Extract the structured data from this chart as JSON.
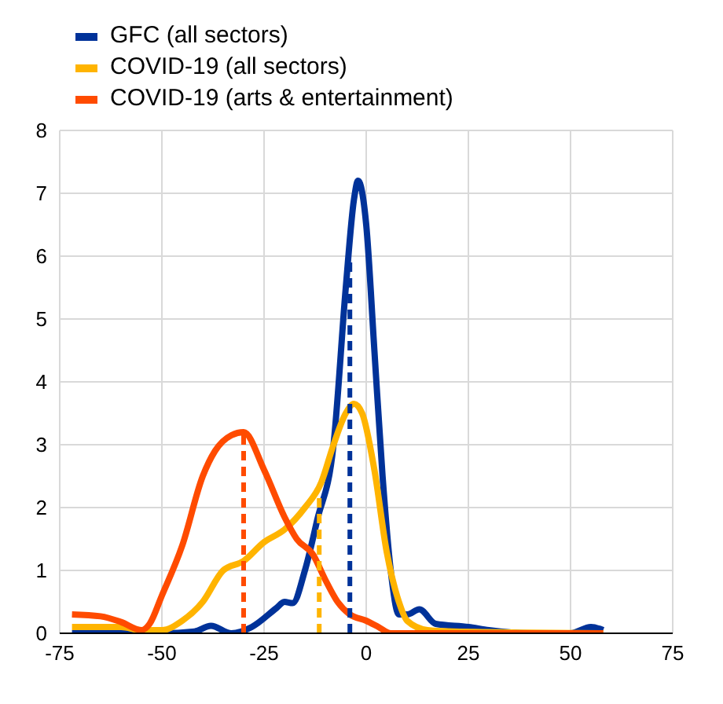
{
  "chart_data": {
    "type": "line",
    "xlim": [
      -75,
      75
    ],
    "xticks": [
      -75,
      -50,
      -25,
      0,
      25,
      50,
      75
    ],
    "ylim": [
      0,
      8
    ],
    "yticks": [
      0,
      1,
      2,
      3,
      4,
      5,
      6,
      7,
      8
    ],
    "grid": true,
    "legend": "top left",
    "marker": "none",
    "line_style": "solid",
    "series": [
      {
        "name": "GFC (all sectors)",
        "color": "#003299",
        "x": [
          -72,
          -50,
          -42,
          -38,
          -33,
          -28,
          -22,
          -20,
          -18,
          -15,
          -12,
          -8,
          -5,
          -3,
          -2,
          0,
          2,
          4,
          6,
          8,
          10,
          13,
          17,
          25,
          30,
          40,
          50,
          55,
          58
        ],
        "values": [
          0,
          0,
          0.03,
          0.12,
          0,
          0.1,
          0.4,
          0.5,
          0.48,
          1.0,
          1.8,
          3.0,
          5.5,
          6.9,
          7.2,
          6.5,
          4.5,
          2.5,
          1.0,
          0.3,
          0.3,
          0.38,
          0.15,
          0.1,
          0.05,
          0,
          0,
          0.1,
          0.05
        ]
      },
      {
        "name": "COVID-19 (all sectors)",
        "color": "#ffb400",
        "x": [
          -72,
          -60,
          -55,
          -50,
          -45,
          -40,
          -35,
          -30,
          -25,
          -20,
          -15,
          -11,
          -8,
          -5,
          -3,
          -1,
          2,
          5,
          8,
          10,
          15,
          20,
          40,
          58
        ],
        "values": [
          0.1,
          0.1,
          0.05,
          0.05,
          0.2,
          0.5,
          1.0,
          1.15,
          1.45,
          1.65,
          2.0,
          2.4,
          3.0,
          3.5,
          3.65,
          3.5,
          2.6,
          1.3,
          0.5,
          0.2,
          0.05,
          0.03,
          0.01,
          0
        ]
      },
      {
        "name": "COVID-19 (arts & entertainment)",
        "color": "#ff4b00",
        "x": [
          -72,
          -65,
          -60,
          -55,
          -53,
          -50,
          -45,
          -40,
          -37,
          -33,
          -30,
          -25,
          -20,
          -17,
          -13,
          -10,
          -7,
          -4,
          0,
          3,
          6,
          58
        ],
        "values": [
          0.3,
          0.27,
          0.18,
          0.05,
          0.15,
          0.6,
          1.4,
          2.5,
          2.9,
          3.15,
          3.2,
          2.6,
          1.85,
          1.5,
          1.25,
          0.85,
          0.5,
          0.3,
          0.2,
          0.1,
          0,
          0
        ]
      },
      {
        "color": "#003299",
        "line_style": "dashed",
        "x": [
          -4,
          -4
        ],
        "values": [
          0,
          5.9
        ]
      },
      {
        "color": "#ffb400",
        "line_style": "dashed",
        "x": [
          -11.5,
          -11.5
        ],
        "values": [
          0,
          2.2
        ]
      },
      {
        "color": "#ff4b00",
        "line_style": "dashed",
        "x": [
          -30,
          -30
        ],
        "values": [
          0,
          3.2
        ]
      }
    ]
  }
}
